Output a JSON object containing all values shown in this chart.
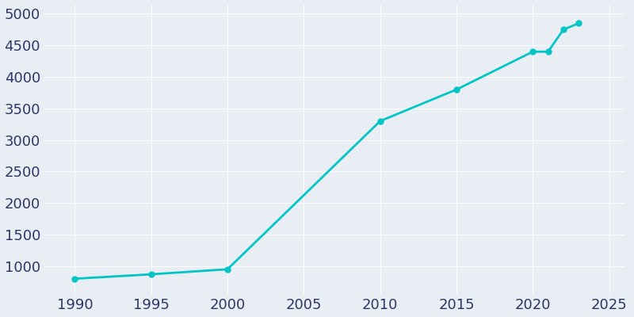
{
  "years": [
    1990,
    1995,
    2000,
    2010,
    2015,
    2020,
    2021,
    2022,
    2023
  ],
  "population": [
    800,
    870,
    950,
    3300,
    3800,
    4400,
    4400,
    4750,
    4850
  ],
  "line_color": "#00C5C5",
  "marker_color": "#00C5C5",
  "background_color": "#E8EEF4",
  "grid_color": "#ffffff",
  "text_color": "#2e3566",
  "ylim": [
    550,
    5150
  ],
  "xlim": [
    1988,
    2026
  ],
  "yticks": [
    1000,
    1500,
    2000,
    2500,
    3000,
    3500,
    4000,
    4500,
    5000
  ],
  "xticks": [
    1990,
    1995,
    2000,
    2005,
    2010,
    2015,
    2020,
    2025
  ],
  "figsize": [
    8.0,
    4.0
  ],
  "dpi": 100,
  "linewidth": 2.0,
  "markersize": 5,
  "tick_labelsize": 13
}
